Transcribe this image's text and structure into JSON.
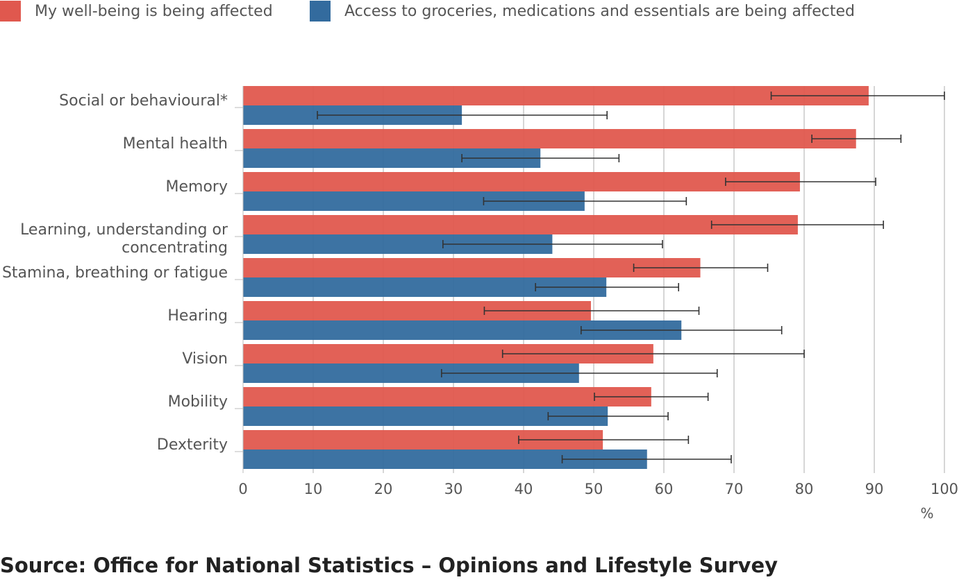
{
  "chart_data": {
    "type": "bar",
    "orientation": "horizontal",
    "categories": [
      "Social or behavioural*",
      "Mental health",
      "Memory",
      "Learning, understanding or concentrating",
      "Stamina, breathing or fatigue",
      "Hearing",
      "Vision",
      "Mobility",
      "Dexterity"
    ],
    "category_lines": [
      [
        "Social or behavioural*"
      ],
      [
        "Mental health"
      ],
      [
        "Memory"
      ],
      [
        "Learning, understanding or",
        "concentrating"
      ],
      [
        "Stamina, breathing or fatigue"
      ],
      [
        "Hearing"
      ],
      [
        "Vision"
      ],
      [
        "Mobility"
      ],
      [
        "Dexterity"
      ]
    ],
    "series": [
      {
        "name": "My well-being is being affected",
        "color": "#e0584e",
        "values": [
          89.2,
          87.4,
          79.4,
          79.1,
          65.2,
          49.6,
          58.5,
          58.2,
          51.3
        ],
        "ci_low": [
          75.3,
          81.1,
          68.8,
          66.8,
          55.7,
          34.4,
          37.0,
          50.1,
          39.3
        ],
        "ci_high": [
          100.0,
          93.8,
          90.2,
          91.3,
          74.8,
          65.0,
          80.0,
          66.3,
          63.5
        ]
      },
      {
        "name": "Access to groceries, medications and essentials are being affected",
        "color": "#336b9e",
        "values": [
          31.2,
          42.4,
          48.7,
          44.1,
          51.8,
          62.5,
          47.9,
          52.0,
          57.6
        ],
        "ci_low": [
          10.6,
          31.2,
          34.3,
          28.5,
          41.7,
          48.2,
          28.3,
          43.5,
          45.5
        ],
        "ci_high": [
          51.9,
          53.6,
          63.2,
          59.8,
          62.1,
          76.8,
          67.6,
          60.6,
          69.6
        ]
      }
    ],
    "xlim": [
      0,
      100
    ],
    "xticks": [
      0,
      10,
      20,
      30,
      40,
      50,
      60,
      70,
      80,
      90,
      100
    ],
    "xlabel": "%",
    "grid": true,
    "legend_position": "top-left",
    "error_bars": true
  },
  "source": "Source: Office for National Statistics – Opinions and Lifestyle Survey"
}
